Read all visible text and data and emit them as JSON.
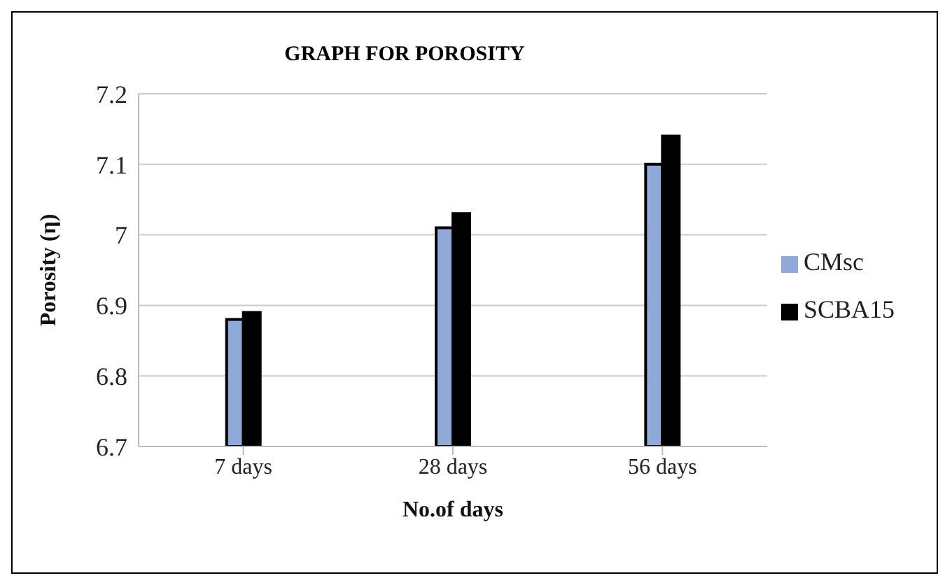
{
  "chart_data": {
    "type": "bar",
    "title": "GRAPH FOR POROSITY",
    "xlabel": "No.of days",
    "ylabel": "Porosity (η)",
    "categories": [
      "7 days",
      "28 days",
      "56 days"
    ],
    "series": [
      {
        "name": "CMsc",
        "color": "#8fa9d9",
        "values": [
          6.88,
          7.01,
          7.1
        ]
      },
      {
        "name": "SCBA15",
        "color": "#000000",
        "values": [
          6.89,
          7.03,
          7.14
        ]
      }
    ],
    "ylim": [
      6.7,
      7.2
    ],
    "yticks": [
      6.7,
      6.8,
      6.9,
      7,
      7.1,
      7.2
    ],
    "grid": "y",
    "legend": "right"
  }
}
